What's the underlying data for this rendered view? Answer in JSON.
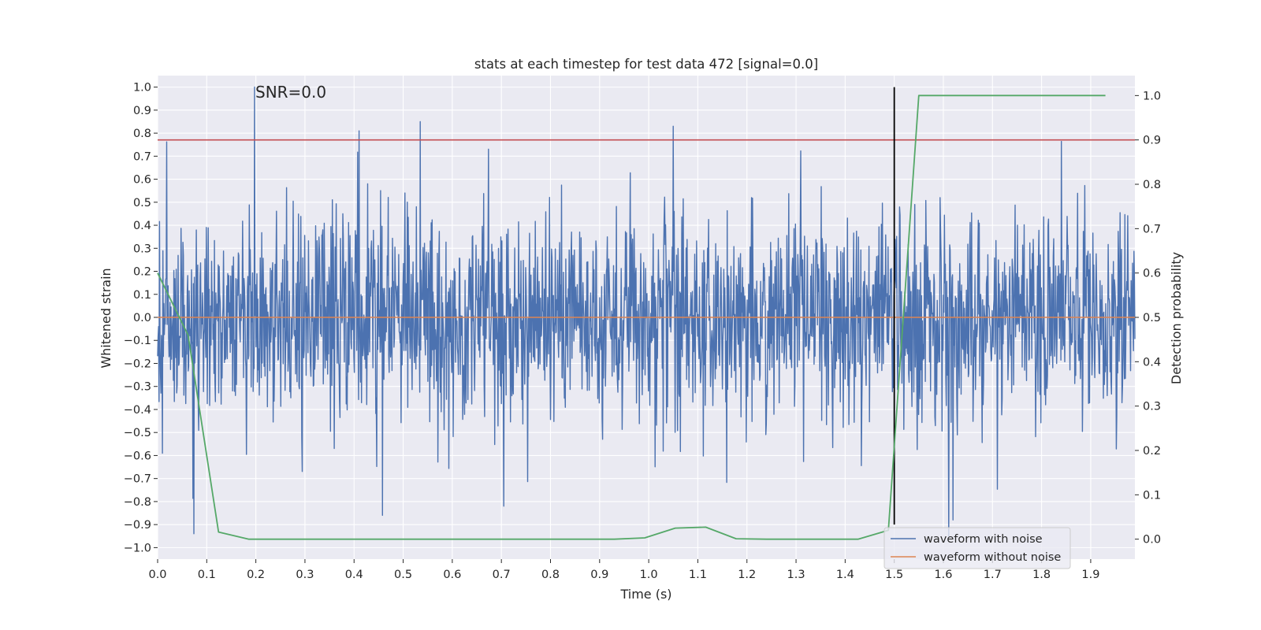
{
  "chart_data": {
    "type": "line",
    "title": "stats at each timestep for test data 472 [signal=0.0]",
    "xlabel": "Time (s)",
    "ylabel": "Whitened strain",
    "y2label": "Detection probability",
    "annotation": "SNR=0.0",
    "xlim": [
      0.0,
      1.99
    ],
    "ylim": [
      -1.05,
      1.05
    ],
    "y2lim": [
      -0.045,
      1.045
    ],
    "xticks": [
      0.0,
      0.1,
      0.2,
      0.3,
      0.4,
      0.5,
      0.6,
      0.7,
      0.8,
      0.9,
      1.0,
      1.1,
      1.2,
      1.3,
      1.4,
      1.5,
      1.6,
      1.7,
      1.8,
      1.9
    ],
    "yticks": [
      -1.0,
      -0.9,
      -0.8,
      -0.7,
      -0.6,
      -0.5,
      -0.4,
      -0.3,
      -0.2,
      -0.1,
      0.0,
      0.1,
      0.2,
      0.3,
      0.4,
      0.5,
      0.6,
      0.7,
      0.8,
      0.9,
      1.0
    ],
    "y2ticks": [
      0.0,
      0.1,
      0.2,
      0.3,
      0.4,
      0.5,
      0.6,
      0.7,
      0.8,
      0.9,
      1.0
    ],
    "grid": true,
    "legend_position": "bottom-right",
    "series": [
      {
        "name": "waveform with noise",
        "axis": "left",
        "color": "#4c72b0",
        "style": "dense noise trace, 2048 samples, amplitude within [-0.95, 1.0]",
        "sample_count": 2048,
        "noise_std": 0.22,
        "peaks": [
          {
            "x": 0.197,
            "y": 1.0
          },
          {
            "x": 0.41,
            "y": 0.81
          },
          {
            "x": 0.535,
            "y": 0.85
          },
          {
            "x": 1.05,
            "y": 0.83
          },
          {
            "x": 0.074,
            "y": -0.94
          },
          {
            "x": 0.458,
            "y": -0.86
          },
          {
            "x": 0.705,
            "y": -0.82
          },
          {
            "x": 1.62,
            "y": -0.88
          }
        ]
      },
      {
        "name": "waveform without noise",
        "axis": "left",
        "color": "#dd8452",
        "x": [
          0.0,
          1.99
        ],
        "y": [
          0.0,
          0.0
        ]
      },
      {
        "name": "detection probability",
        "axis": "right",
        "color": "#55a868",
        "in_legend": false,
        "x": [
          0.0,
          0.062,
          0.124,
          0.186,
          0.248,
          0.31,
          0.372,
          0.434,
          0.496,
          0.558,
          0.62,
          0.682,
          0.744,
          0.806,
          0.868,
          0.93,
          0.992,
          1.054,
          1.116,
          1.178,
          1.24,
          1.302,
          1.364,
          1.426,
          1.488,
          1.55,
          1.612,
          1.674,
          1.736,
          1.798,
          1.86,
          1.93
        ],
        "y": [
          0.6,
          0.46,
          0.016,
          0.0,
          0.0,
          0.0,
          0.0,
          0.0,
          0.0,
          0.0,
          0.0,
          0.0,
          0.0,
          0.0,
          0.0,
          0.0,
          0.003,
          0.025,
          0.027,
          0.001,
          0.0,
          0.0,
          0.0,
          0.0,
          0.02,
          1.0,
          1.0,
          1.0,
          1.0,
          1.0,
          1.0,
          1.0
        ]
      }
    ],
    "threshold_line": {
      "axis": "right",
      "value": 0.9,
      "color": "#c44e52"
    },
    "vertical_line": {
      "x": 1.5,
      "y_from": -0.9,
      "y_to": 1.0,
      "color": "#000000"
    }
  }
}
